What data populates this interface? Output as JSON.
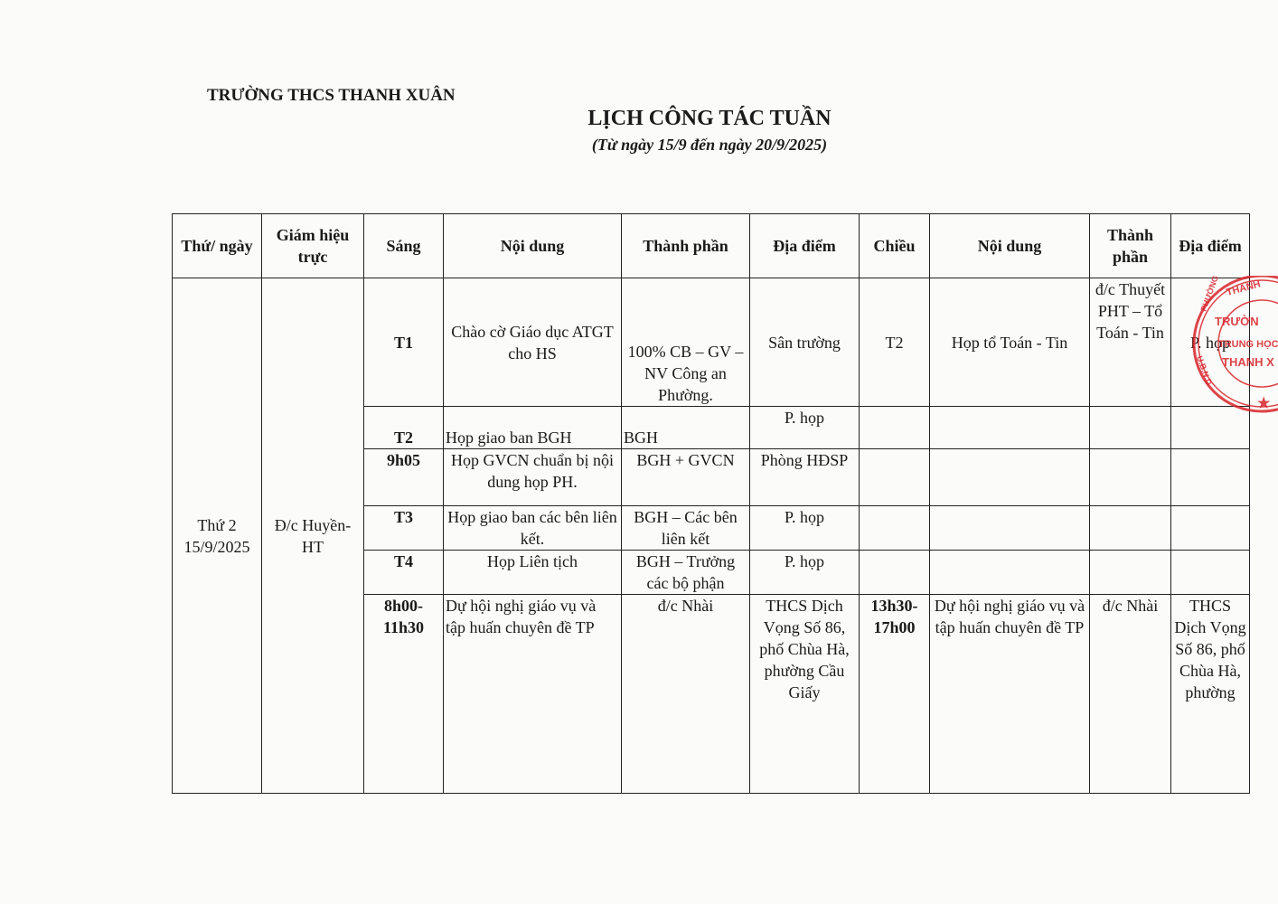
{
  "school": "TRƯỜNG THCS THANH XUÂN",
  "title": "LỊCH CÔNG TÁC TUẦN",
  "subtitle": "(Từ ngày 15/9 đến ngày 20/9/2025)",
  "headers": [
    "Thứ/ ngày",
    "Giám hiệu trực",
    "Sáng",
    "Nội dung",
    "Thành phần",
    "Địa điểm",
    "Chiều",
    "Nội dung",
    "Thành phần",
    "Địa điểm"
  ],
  "day": "Thứ 2 15/9/2025",
  "duty": "Đ/c Huyền- HT",
  "rows": [
    {
      "time": "T1",
      "content": "Chào cờ Giáo dục ATGT cho HS",
      "members": "100% CB – GV – NV Công an Phường.",
      "place": "Sân trường",
      "pm_time": "T2",
      "pm_content": "Họp tổ Toán - Tin",
      "pm_members": "đ/c Thuyết PHT – Tổ Toán - Tin",
      "pm_place": "P. họp"
    },
    {
      "time": "T2",
      "content": "Họp giao ban BGH",
      "members": "BGH",
      "place": "P. họp",
      "pm_time": "",
      "pm_content": "",
      "pm_members": "",
      "pm_place": ""
    },
    {
      "time": "9h05",
      "content": "Họp GVCN chuẩn bị nội dung họp PH.",
      "members": "BGH + GVCN",
      "place": "Phòng HĐSP",
      "pm_time": "",
      "pm_content": "",
      "pm_members": "",
      "pm_place": ""
    },
    {
      "time": "T3",
      "content": "Họp giao ban các bên liên kết.",
      "members": "BGH – Các bên liên kết",
      "place": "P. họp",
      "pm_time": "",
      "pm_content": "",
      "pm_members": "",
      "pm_place": ""
    },
    {
      "time": "T4",
      "content": "Họp Liên tịch",
      "members": "BGH – Trưởng các bộ phận",
      "place": "P. họp",
      "pm_time": "",
      "pm_content": "",
      "pm_members": "",
      "pm_place": ""
    },
    {
      "time": "8h00- 11h30",
      "content": "Dự hội nghị giáo vụ và tập huấn chuyên đề TP",
      "members": "đ/c Nhài",
      "place": "THCS Dịch Vọng Số 86, phố Chùa Hà, phường Cầu Giấy",
      "pm_time": "13h30- 17h00",
      "pm_content": "Dự hội nghị giáo vụ và tập huấn chuyên đề TP",
      "pm_members": "đ/c Nhài",
      "pm_place": "THCS Dịch Vọng Số 86, phố Chùa Hà, phường"
    }
  ],
  "stamp": {
    "text": "U.B.N.D PHƯỜNG THANH XUÂN — TRƯỜNG TRUNG HỌC THANH XUÂN",
    "color": "#d8232a"
  }
}
